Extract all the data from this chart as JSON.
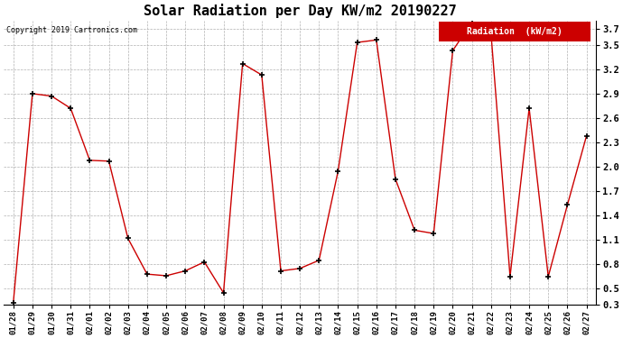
{
  "title": "Solar Radiation per Day KW/m2 20190227",
  "copyright": "Copyright 2019 Cartronics.com",
  "legend_label": "Radiation  (kW/m2)",
  "dates": [
    "01/28",
    "01/29",
    "01/30",
    "01/31",
    "02/01",
    "02/02",
    "02/03",
    "02/04",
    "02/05",
    "02/06",
    "02/07",
    "02/08",
    "02/09",
    "02/10",
    "02/11",
    "02/12",
    "02/13",
    "02/14",
    "02/15",
    "02/16",
    "02/17",
    "02/18",
    "02/19",
    "02/20",
    "02/21",
    "02/22",
    "02/23",
    "02/24",
    "02/25",
    "02/26",
    "02/27"
  ],
  "values": [
    0.33,
    2.9,
    2.87,
    2.72,
    2.08,
    2.07,
    1.12,
    0.68,
    0.66,
    0.72,
    0.83,
    0.45,
    3.27,
    3.13,
    0.72,
    0.75,
    0.85,
    1.95,
    3.53,
    3.56,
    1.85,
    1.22,
    1.18,
    3.43,
    3.78,
    3.65,
    0.65,
    2.72,
    0.65,
    1.53,
    2.38
  ],
  "line_color": "#cc0000",
  "marker_color": "#000000",
  "bg_color": "#ffffff",
  "grid_color": "#b0b0b0",
  "ylim": [
    0.3,
    3.8
  ],
  "yticks": [
    0.3,
    0.5,
    0.8,
    1.1,
    1.4,
    1.7,
    2.0,
    2.3,
    2.6,
    2.9,
    3.2,
    3.5,
    3.7
  ],
  "legend_bg": "#cc0000",
  "legend_text_color": "#ffffff"
}
